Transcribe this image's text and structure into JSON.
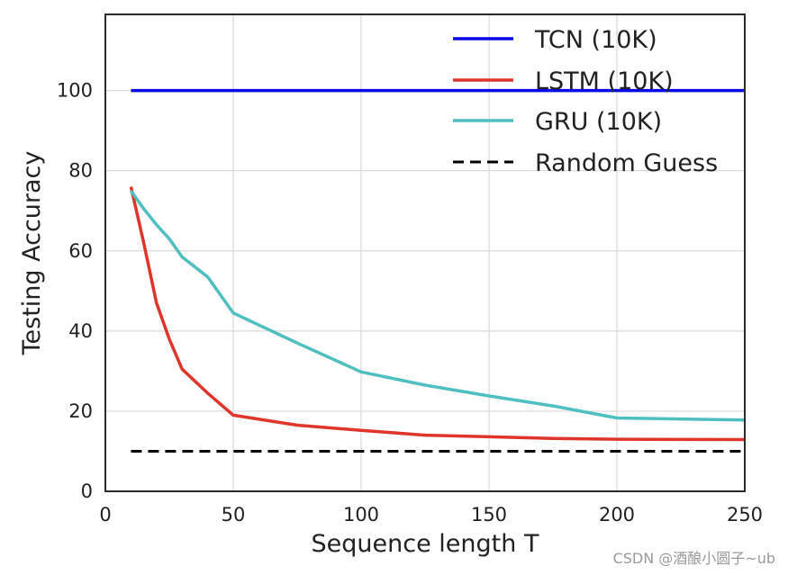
{
  "chart_data": {
    "type": "line",
    "title": "",
    "xlabel": "Sequence length T",
    "ylabel": "Testing Accuracy",
    "xlim": [
      0,
      250
    ],
    "ylim": [
      0,
      119
    ],
    "xticks": [
      0,
      50,
      100,
      150,
      200,
      250
    ],
    "yticks": [
      0,
      20,
      40,
      60,
      80,
      100
    ],
    "grid": true,
    "legend_position": "top-right",
    "series": [
      {
        "name": "TCN (10K)",
        "color": "#0a0ae6",
        "style": "solid",
        "x": [
          10,
          250
        ],
        "y": [
          100,
          100
        ]
      },
      {
        "name": "LSTM (10K)",
        "color": "#e0352b",
        "style": "solid",
        "x": [
          10,
          15,
          20,
          25,
          30,
          40,
          50,
          75,
          100,
          125,
          150,
          175,
          200,
          250
        ],
        "y": [
          76,
          62,
          47,
          38,
          30.5,
          24.5,
          19,
          16.5,
          15.2,
          14,
          13.6,
          13.2,
          13,
          12.9
        ]
      },
      {
        "name": "GRU (10K)",
        "color": "#4fbfbf",
        "style": "solid",
        "x": [
          10,
          15,
          20,
          25,
          30,
          40,
          50,
          75,
          100,
          125,
          150,
          175,
          200,
          250
        ],
        "y": [
          75,
          70.5,
          66.5,
          63,
          58.5,
          53.5,
          44.5,
          37,
          29.8,
          26.5,
          23.8,
          21.3,
          18.3,
          17.8
        ]
      },
      {
        "name": "Random Guess",
        "color": "#000000",
        "style": "dashed",
        "x": [
          10,
          250
        ],
        "y": [
          10,
          10
        ]
      }
    ]
  },
  "watermark": "CSDN @酒酿小圆子~ub"
}
